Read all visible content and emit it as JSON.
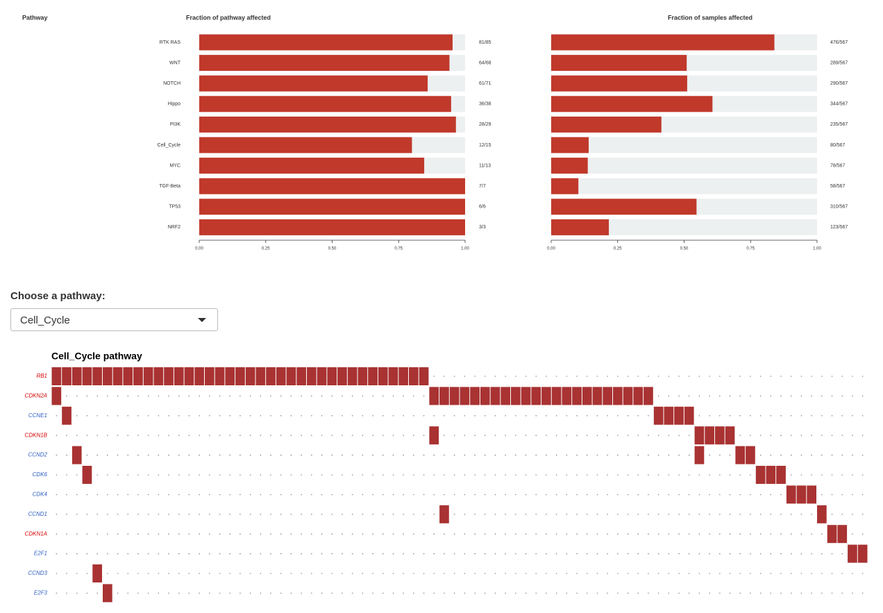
{
  "chart_data": [
    {
      "type": "bar",
      "orientation": "horizontal",
      "title": "Fraction of pathway affected",
      "ylabel": "Pathway",
      "categories": [
        "RTK RAS",
        "WNT",
        "NOTCH",
        "Hippo",
        "PI3K",
        "Cell_Cycle",
        "MYC",
        "TGF-Beta",
        "TP53",
        "NRF2"
      ],
      "values": [
        0.9529,
        0.9412,
        0.8592,
        0.9474,
        0.9655,
        0.8,
        0.8462,
        1,
        1,
        1
      ],
      "value_labels": [
        "81/85",
        "64/68",
        "61/71",
        "36/38",
        "28/29",
        "12/15",
        "11/13",
        "7/7",
        "6/6",
        "3/3"
      ],
      "xlim": [
        0,
        1
      ],
      "xticks": [
        {
          "value": 0,
          "label": "0.00"
        },
        {
          "value": 0.25,
          "label": "0.25"
        },
        {
          "value": 0.5,
          "label": "0.50"
        },
        {
          "value": 0.75,
          "label": "0.75"
        },
        {
          "value": 1,
          "label": "1.00"
        }
      ],
      "color": "#c0392b",
      "background": "#ecf0f1"
    },
    {
      "type": "bar",
      "orientation": "horizontal",
      "title": "Fraction of samples affected",
      "values": [
        0.8395,
        0.5097,
        0.5115,
        0.6067,
        0.4145,
        0.1411,
        0.1376,
        0.1023,
        0.5467,
        0.2169
      ],
      "value_labels": [
        "476/567",
        "289/567",
        "290/567",
        "344/567",
        "235/567",
        "80/567",
        "78/567",
        "58/567",
        "310/567",
        "123/567"
      ],
      "xlim": [
        0,
        1
      ],
      "xticks": [
        {
          "value": 0,
          "label": "0.00"
        },
        {
          "value": 0.25,
          "label": "0.25"
        },
        {
          "value": 0.5,
          "label": "0.50"
        },
        {
          "value": 0.75,
          "label": "0.75"
        },
        {
          "value": 1,
          "label": "1.00"
        }
      ],
      "color": "#c0392b",
      "background": "#ecf0f1"
    }
  ],
  "selector": {
    "label": "Choose a pathway:",
    "selected": "Cell_Cycle"
  },
  "oncoplot": {
    "type": "oncoplot",
    "title": "Cell_Cycle pathway",
    "n_samples": 80,
    "color": "#a93232",
    "genes": [
      {
        "name": "RB1",
        "color": "#d40000",
        "altered": [
          0,
          1,
          2,
          3,
          4,
          5,
          6,
          7,
          8,
          9,
          10,
          11,
          12,
          13,
          14,
          15,
          16,
          17,
          18,
          19,
          20,
          21,
          22,
          23,
          24,
          25,
          26,
          27,
          28,
          29,
          30,
          31,
          32,
          33,
          34,
          35,
          36
        ]
      },
      {
        "name": "CDKN2A",
        "color": "#d40000",
        "altered": [
          0,
          37,
          38,
          39,
          40,
          41,
          42,
          43,
          44,
          45,
          46,
          47,
          48,
          49,
          50,
          51,
          52,
          53,
          54,
          55,
          56,
          57,
          58
        ]
      },
      {
        "name": "CCNE1",
        "color": "#2d5fc4",
        "altered": [
          1,
          59,
          60,
          61,
          62
        ]
      },
      {
        "name": "CDKN1B",
        "color": "#d40000",
        "altered": [
          37,
          63,
          64,
          65,
          66
        ]
      },
      {
        "name": "CCND2",
        "color": "#2d5fc4",
        "altered": [
          2,
          63,
          67,
          68
        ]
      },
      {
        "name": "CDK6",
        "color": "#2d5fc4",
        "altered": [
          3,
          69,
          70,
          71
        ]
      },
      {
        "name": "CDK4",
        "color": "#2d5fc4",
        "altered": [
          72,
          73,
          74
        ]
      },
      {
        "name": "CCND1",
        "color": "#2d5fc4",
        "altered": [
          38,
          75
        ]
      },
      {
        "name": "CDKN1A",
        "color": "#d40000",
        "altered": [
          76,
          77
        ]
      },
      {
        "name": "E2F1",
        "color": "#2d5fc4",
        "altered": [
          78,
          79
        ]
      },
      {
        "name": "CCND3",
        "color": "#2d5fc4",
        "altered": [
          4
        ]
      },
      {
        "name": "E2F3",
        "color": "#2d5fc4",
        "altered": [
          5
        ]
      }
    ]
  }
}
